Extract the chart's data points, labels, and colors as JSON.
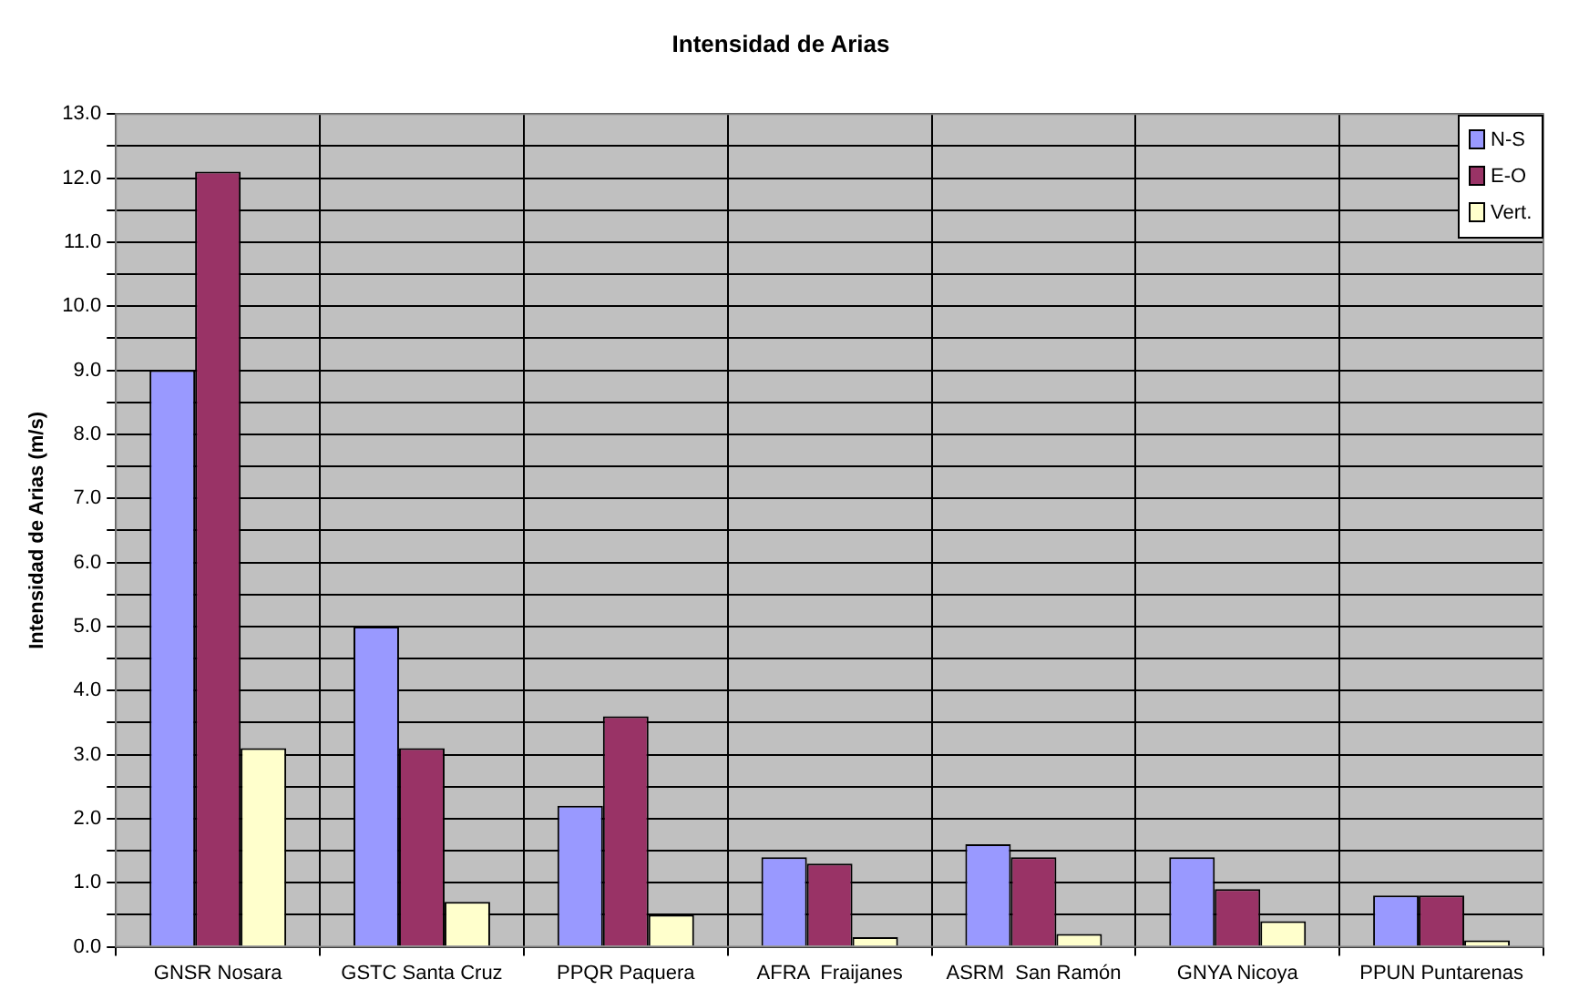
{
  "chart_data": {
    "type": "bar",
    "title": "Intensidad de Arias",
    "ylabel": "Intensidad de Arias (m/s)",
    "categories": [
      "GNSR Nosara",
      "GSTC Santa Cruz",
      "PPQR Paquera",
      "AFRA  Fraijanes",
      "ASRM  San Ramón",
      "GNYA Nicoya",
      "PPUN Puntarenas"
    ],
    "series": [
      {
        "name": "N-S",
        "color": "#9999ff",
        "values": [
          9.0,
          5.0,
          2.2,
          1.4,
          1.6,
          1.4,
          0.8
        ]
      },
      {
        "name": "E-O",
        "color": "#993366",
        "values": [
          12.1,
          3.1,
          3.6,
          1.3,
          1.4,
          0.9,
          0.8
        ]
      },
      {
        "name": "Vert.",
        "color": "#ffffcc",
        "values": [
          3.1,
          0.7,
          0.5,
          0.15,
          0.2,
          0.4,
          0.1
        ]
      }
    ],
    "ylim": [
      0,
      13
    ],
    "yticks": [
      {
        "value": 0,
        "label": "0.0"
      },
      {
        "value": 0.5,
        "label": null
      },
      {
        "value": 1,
        "label": "1.0"
      },
      {
        "value": 1.5,
        "label": null
      },
      {
        "value": 2,
        "label": "2.0"
      },
      {
        "value": 2.5,
        "label": null
      },
      {
        "value": 3,
        "label": "3.0"
      },
      {
        "value": 3.5,
        "label": null
      },
      {
        "value": 4,
        "label": "4.0"
      },
      {
        "value": 4.5,
        "label": null
      },
      {
        "value": 5,
        "label": "5.0"
      },
      {
        "value": 5.5,
        "label": null
      },
      {
        "value": 6,
        "label": "6.0"
      },
      {
        "value": 6.5,
        "label": null
      },
      {
        "value": 7,
        "label": "7.0"
      },
      {
        "value": 7.5,
        "label": null
      },
      {
        "value": 8,
        "label": "8.0"
      },
      {
        "value": 8.5,
        "label": null
      },
      {
        "value": 9,
        "label": "9.0"
      },
      {
        "value": 9.5,
        "label": null
      },
      {
        "value": 10,
        "label": "10.0"
      },
      {
        "value": 10.5,
        "label": null
      },
      {
        "value": 11,
        "label": "11.0"
      },
      {
        "value": 11.5,
        "label": null
      },
      {
        "value": 12,
        "label": "12.0"
      },
      {
        "value": 12.5,
        "label": null
      },
      {
        "value": 13,
        "label": "13.0"
      }
    ],
    "grid": true,
    "legend": "top right"
  }
}
